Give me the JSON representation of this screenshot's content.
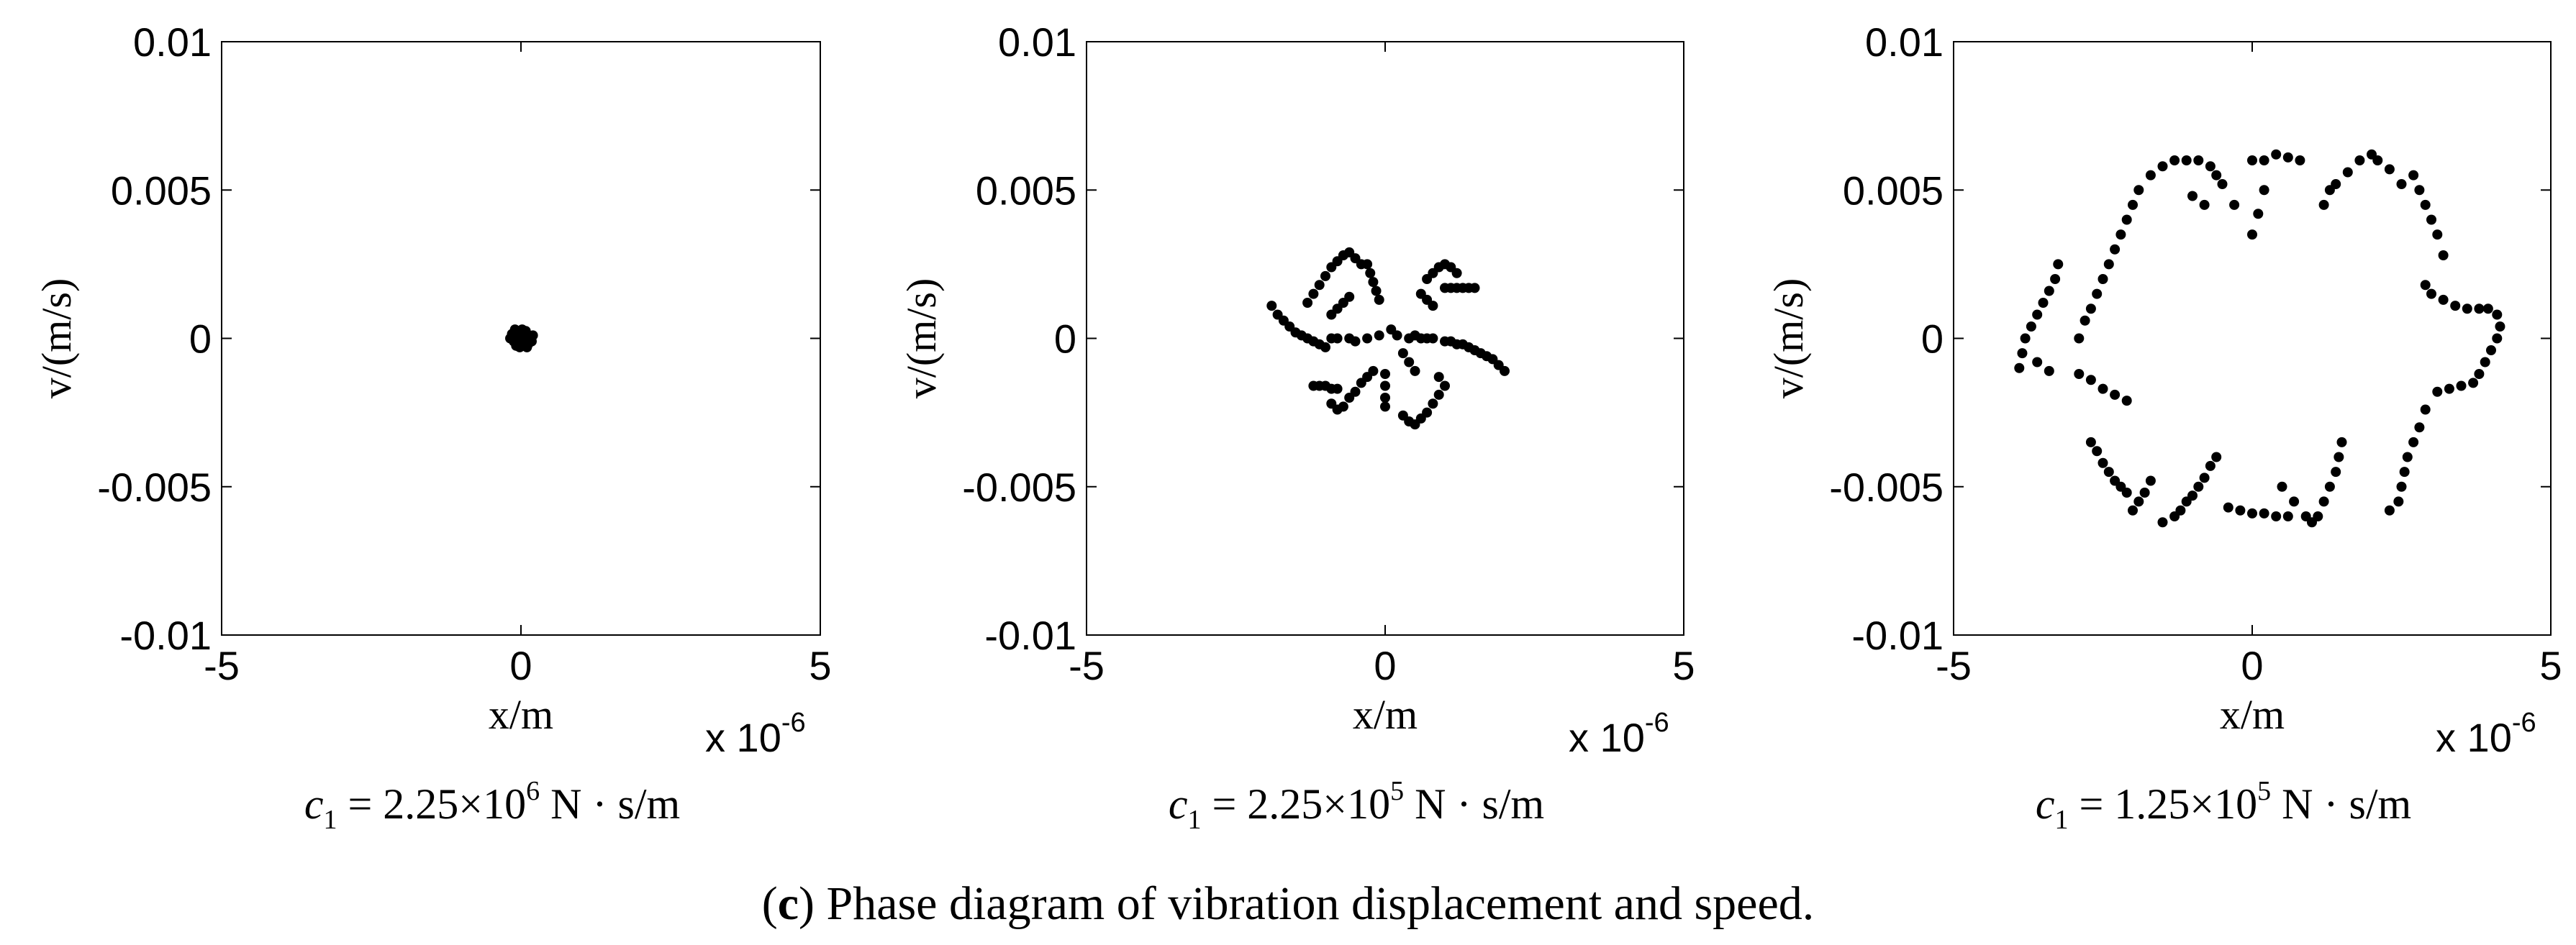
{
  "figure_caption": {
    "open": "(",
    "letter": "c",
    "text": ") Phase diagram of vibration displacement and speed."
  },
  "chart_data": [
    {
      "type": "scatter",
      "xlabel": "x/m",
      "ylabel": "v/(m/s)",
      "xlim": [
        -5e-06,
        5e-06
      ],
      "ylim": [
        -0.01,
        0.01
      ],
      "x_ticks": [
        "-5",
        "0",
        "5"
      ],
      "y_ticks": [
        "0.01",
        "0.005",
        "0",
        "-0.005",
        "-0.01"
      ],
      "x_multiplier": {
        "base": "x 10",
        "exp": "-6"
      },
      "caption": {
        "sym": "c",
        "sub": "1",
        "eq": " = 2.25×10",
        "exp": "6",
        "unit": " N · s/m"
      },
      "marker_color": "#000000",
      "points": [
        [
          0.0,
          0.0
        ],
        [
          -1e-07,
          0.0001
        ],
        [
          5e-08,
          -0.0001
        ],
        [
          -5e-08,
          0.0002
        ],
        [
          1e-07,
          0.0001
        ],
        [
          0.0,
          -0.0002
        ],
        [
          -1.2e-07,
          -0.0001
        ],
        [
          1.5e-07,
          0.0
        ],
        [
          8e-08,
          0.00025
        ],
        [
          -8e-08,
          -0.00025
        ],
        [
          1.2e-07,
          -0.0002
        ],
        [
          -1.5e-07,
          0.00015
        ],
        [
          2e-08,
          0.0003
        ],
        [
          -2e-08,
          -0.0003
        ],
        [
          1.8e-07,
          -0.0001
        ],
        [
          -1.8e-07,
          0.0
        ],
        [
          1e-07,
          -0.0003
        ],
        [
          -1e-07,
          0.0003
        ],
        [
          2e-07,
          0.0001
        ],
        [
          6e-08,
          5e-05
        ]
      ]
    },
    {
      "type": "scatter",
      "xlabel": "x/m",
      "ylabel": "v/(m/s)",
      "xlim": [
        -5e-06,
        5e-06
      ],
      "ylim": [
        -0.01,
        0.01
      ],
      "x_ticks": [
        "-5",
        "0",
        "5"
      ],
      "y_ticks": [
        "0.01",
        "0.005",
        "0",
        "-0.005",
        "-0.01"
      ],
      "x_multiplier": {
        "base": "x 10",
        "exp": "-6"
      },
      "caption": {
        "sym": "c",
        "sub": "1",
        "eq": " = 2.25×10",
        "exp": "5",
        "unit": " N · s/m"
      },
      "marker_color": "#000000",
      "points": [
        [
          -1.9e-06,
          0.0011
        ],
        [
          -1.8e-06,
          0.0008
        ],
        [
          -1.7e-06,
          0.0006
        ],
        [
          -1.6e-06,
          0.0004
        ],
        [
          -1.5e-06,
          0.0002
        ],
        [
          -1.4e-06,
          0.0001
        ],
        [
          -1.3e-06,
          0.0
        ],
        [
          -1.2e-06,
          -0.0001
        ],
        [
          -1.1e-06,
          -0.0002
        ],
        [
          -1e-06,
          -0.0003
        ],
        [
          -1.3e-06,
          0.0012
        ],
        [
          -1.2e-06,
          0.0015
        ],
        [
          -1.1e-06,
          0.0018
        ],
        [
          -1e-06,
          0.0021
        ],
        [
          -9e-07,
          0.0024
        ],
        [
          -8e-07,
          0.0026
        ],
        [
          -7e-07,
          0.0028
        ],
        [
          -6e-07,
          0.0029
        ],
        [
          -5e-07,
          0.0027
        ],
        [
          -4e-07,
          0.0025
        ],
        [
          -9e-07,
          0.0008
        ],
        [
          -8e-07,
          0.001
        ],
        [
          -7e-07,
          0.0012
        ],
        [
          -6e-07,
          0.0014
        ],
        [
          -3e-07,
          0.0025
        ],
        [
          -2.5e-07,
          0.0022
        ],
        [
          -2e-07,
          0.0019
        ],
        [
          -1.5e-07,
          0.0016
        ],
        [
          -1e-07,
          0.0013
        ],
        [
          8e-07,
          0.0022
        ],
        [
          9e-07,
          0.0024
        ],
        [
          1e-06,
          0.0025
        ],
        [
          1.1e-06,
          0.0024
        ],
        [
          1.2e-06,
          0.0022
        ],
        [
          7e-07,
          0.002
        ],
        [
          6e-07,
          0.0015
        ],
        [
          7e-07,
          0.0013
        ],
        [
          8e-07,
          0.0011
        ],
        [
          1e-06,
          0.0017
        ],
        [
          1.1e-06,
          0.0017
        ],
        [
          1.2e-06,
          0.0017
        ],
        [
          1.3e-06,
          0.0017
        ],
        [
          1.4e-06,
          0.0017
        ],
        [
          1.5e-06,
          0.0017
        ],
        [
          -9e-07,
          0.0
        ],
        [
          -8e-07,
          0.0
        ],
        [
          -6e-07,
          0.0
        ],
        [
          -5e-07,
          -0.0001
        ],
        [
          -3e-07,
          0.0
        ],
        [
          -1e-07,
          0.0001
        ],
        [
          1e-07,
          0.0003
        ],
        [
          2e-07,
          0.0001
        ],
        [
          4e-07,
          0.0
        ],
        [
          5e-07,
          0.0001
        ],
        [
          6e-07,
          0.0
        ],
        [
          7e-07,
          0.0
        ],
        [
          8e-07,
          0.0
        ],
        [
          1e-06,
          -0.0001
        ],
        [
          1.1e-06,
          -0.0001
        ],
        [
          1.2e-06,
          -0.0002
        ],
        [
          1.3e-06,
          -0.0002
        ],
        [
          1.4e-06,
          -0.0003
        ],
        [
          1.5e-06,
          -0.0004
        ],
        [
          1.6e-06,
          -0.0005
        ],
        [
          1.7e-06,
          -0.0006
        ],
        [
          1.8e-06,
          -0.0007
        ],
        [
          1.9e-06,
          -0.0009
        ],
        [
          2e-06,
          -0.0011
        ],
        [
          -1.2e-06,
          -0.0016
        ],
        [
          -1.1e-06,
          -0.0016
        ],
        [
          -1e-06,
          -0.0016
        ],
        [
          -9e-07,
          -0.0017
        ],
        [
          -8e-07,
          -0.0017
        ],
        [
          -9e-07,
          -0.0022
        ],
        [
          -8e-07,
          -0.0024
        ],
        [
          -7e-07,
          -0.0023
        ],
        [
          -6e-07,
          -0.002
        ],
        [
          -5e-07,
          -0.0018
        ],
        [
          -4e-07,
          -0.0015
        ],
        [
          -3e-07,
          -0.0013
        ],
        [
          -2e-07,
          -0.0011
        ],
        [
          0.0,
          -0.0012
        ],
        [
          0.0,
          -0.0016
        ],
        [
          0.0,
          -0.002
        ],
        [
          0.0,
          -0.0023
        ],
        [
          3e-07,
          -0.0026
        ],
        [
          4e-07,
          -0.0028
        ],
        [
          5e-07,
          -0.0029
        ],
        [
          6e-07,
          -0.0027
        ],
        [
          7e-07,
          -0.0025
        ],
        [
          8e-07,
          -0.0022
        ],
        [
          9e-07,
          -0.0019
        ],
        [
          1e-06,
          -0.0016
        ],
        [
          9e-07,
          -0.0013
        ],
        [
          3e-07,
          -0.0005
        ],
        [
          4e-07,
          -0.0008
        ],
        [
          5e-07,
          -0.0011
        ]
      ]
    },
    {
      "type": "scatter",
      "xlabel": "x/m",
      "ylabel": "v/(m/s)",
      "xlim": [
        -5e-06,
        5e-06
      ],
      "ylim": [
        -0.01,
        0.01
      ],
      "x_ticks": [
        "-5",
        "0",
        "5"
      ],
      "y_ticks": [
        "0.01",
        "0.005",
        "0",
        "-0.005",
        "-0.01"
      ],
      "x_multiplier": {
        "base": "x 10",
        "exp": "-6"
      },
      "caption": {
        "sym": "c",
        "sub": "1",
        "eq": " = 1.25×10",
        "exp": "5",
        "unit": " N · s/m"
      },
      "marker_color": "#000000",
      "points": [
        [
          -3.9e-06,
          -0.001
        ],
        [
          -3.85e-06,
          -0.0005
        ],
        [
          -3.8e-06,
          0.0
        ],
        [
          -3.7e-06,
          0.0004
        ],
        [
          -3.6e-06,
          0.0008
        ],
        [
          -3.5e-06,
          0.0012
        ],
        [
          -3.4e-06,
          0.0016
        ],
        [
          -3.3e-06,
          0.002
        ],
        [
          -3.25e-06,
          0.0025
        ],
        [
          -2.9e-06,
          0.0
        ],
        [
          -2.8e-06,
          0.0006
        ],
        [
          -2.7e-06,
          0.001
        ],
        [
          -2.6e-06,
          0.0015
        ],
        [
          -2.5e-06,
          0.002
        ],
        [
          -2.4e-06,
          0.0025
        ],
        [
          -2.3e-06,
          0.003
        ],
        [
          -2.2e-06,
          0.0035
        ],
        [
          -2.1e-06,
          0.004
        ],
        [
          -2e-06,
          0.0045
        ],
        [
          -1.9e-06,
          0.005
        ],
        [
          -1.7e-06,
          0.0055
        ],
        [
          -1.5e-06,
          0.0058
        ],
        [
          -1.3e-06,
          0.006
        ],
        [
          -1.1e-06,
          0.006
        ],
        [
          -9e-07,
          0.006
        ],
        [
          -7e-07,
          0.0058
        ],
        [
          -6e-07,
          0.0055
        ],
        [
          -5e-07,
          0.0052
        ],
        [
          -3e-07,
          0.0045
        ],
        [
          -1e-06,
          0.0048
        ],
        [
          -8e-07,
          0.0045
        ],
        [
          0.0,
          0.006
        ],
        [
          2e-07,
          0.006
        ],
        [
          4e-07,
          0.0062
        ],
        [
          6e-07,
          0.0061
        ],
        [
          8e-07,
          0.006
        ],
        [
          0.0,
          0.0035
        ],
        [
          1e-07,
          0.0042
        ],
        [
          2e-07,
          0.005
        ],
        [
          1.2e-06,
          0.0045
        ],
        [
          1.3e-06,
          0.005
        ],
        [
          1.4e-06,
          0.0052
        ],
        [
          1.6e-06,
          0.0056
        ],
        [
          1.8e-06,
          0.006
        ],
        [
          2e-06,
          0.0062
        ],
        [
          2.1e-06,
          0.006
        ],
        [
          2.3e-06,
          0.0057
        ],
        [
          2.5e-06,
          0.0052
        ],
        [
          2.7e-06,
          0.0055
        ],
        [
          2.8e-06,
          0.005
        ],
        [
          2.9e-06,
          0.0045
        ],
        [
          3e-06,
          0.004
        ],
        [
          3.1e-06,
          0.0035
        ],
        [
          3.2e-06,
          0.0028
        ],
        [
          2.9e-06,
          0.0018
        ],
        [
          3e-06,
          0.0015
        ],
        [
          3.2e-06,
          0.0013
        ],
        [
          3.4e-06,
          0.0011
        ],
        [
          3.6e-06,
          0.001
        ],
        [
          3.8e-06,
          0.001
        ],
        [
          3.95e-06,
          0.001
        ],
        [
          4.1e-06,
          0.0008
        ],
        [
          4.15e-06,
          0.0004
        ],
        [
          4.1e-06,
          0.0
        ],
        [
          4e-06,
          -0.0004
        ],
        [
          3.9e-06,
          -0.0008
        ],
        [
          3.8e-06,
          -0.0012
        ],
        [
          3.7e-06,
          -0.0015
        ],
        [
          3.5e-06,
          -0.0016
        ],
        [
          3.3e-06,
          -0.0017
        ],
        [
          3.1e-06,
          -0.0018
        ],
        [
          2.9e-06,
          -0.0024
        ],
        [
          2.8e-06,
          -0.003
        ],
        [
          2.7e-06,
          -0.0035
        ],
        [
          2.6e-06,
          -0.004
        ],
        [
          2.55e-06,
          -0.0045
        ],
        [
          2.5e-06,
          -0.005
        ],
        [
          2.45e-06,
          -0.0055
        ],
        [
          2.3e-06,
          -0.0058
        ],
        [
          1.5e-06,
          -0.0035
        ],
        [
          1.45e-06,
          -0.004
        ],
        [
          1.4e-06,
          -0.0045
        ],
        [
          1.3e-06,
          -0.005
        ],
        [
          1.2e-06,
          -0.0055
        ],
        [
          1.1e-06,
          -0.006
        ],
        [
          1e-06,
          -0.0062
        ],
        [
          9e-07,
          -0.006
        ],
        [
          6e-07,
          -0.006
        ],
        [
          4e-07,
          -0.006
        ],
        [
          2e-07,
          -0.0059
        ],
        [
          0.0,
          -0.0059
        ],
        [
          -2e-07,
          -0.0058
        ],
        [
          -4e-07,
          -0.0057
        ],
        [
          5e-07,
          -0.005
        ],
        [
          7e-07,
          -0.0055
        ],
        [
          -6e-07,
          -0.004
        ],
        [
          -7e-07,
          -0.0043
        ],
        [
          -8e-07,
          -0.0047
        ],
        [
          -9e-07,
          -0.005
        ],
        [
          -1e-06,
          -0.0053
        ],
        [
          -1.1e-06,
          -0.0055
        ],
        [
          -1.2e-06,
          -0.0058
        ],
        [
          -1.3e-06,
          -0.006
        ],
        [
          -1.5e-06,
          -0.0062
        ],
        [
          -1.7e-06,
          -0.0048
        ],
        [
          -1.8e-06,
          -0.0052
        ],
        [
          -1.9e-06,
          -0.0055
        ],
        [
          -2e-06,
          -0.0058
        ],
        [
          -2.1e-06,
          -0.0052
        ],
        [
          -2.2e-06,
          -0.005
        ],
        [
          -2.3e-06,
          -0.0048
        ],
        [
          -2.4e-06,
          -0.0045
        ],
        [
          -2.5e-06,
          -0.0042
        ],
        [
          -2.6e-06,
          -0.0038
        ],
        [
          -2.7e-06,
          -0.0035
        ],
        [
          -2.9e-06,
          -0.0012
        ],
        [
          -2.7e-06,
          -0.0014
        ],
        [
          -2.5e-06,
          -0.0017
        ],
        [
          -2.3e-06,
          -0.0019
        ],
        [
          -2.1e-06,
          -0.0021
        ],
        [
          -3.6e-06,
          -0.0008
        ],
        [
          -3.4e-06,
          -0.0011
        ]
      ]
    }
  ]
}
